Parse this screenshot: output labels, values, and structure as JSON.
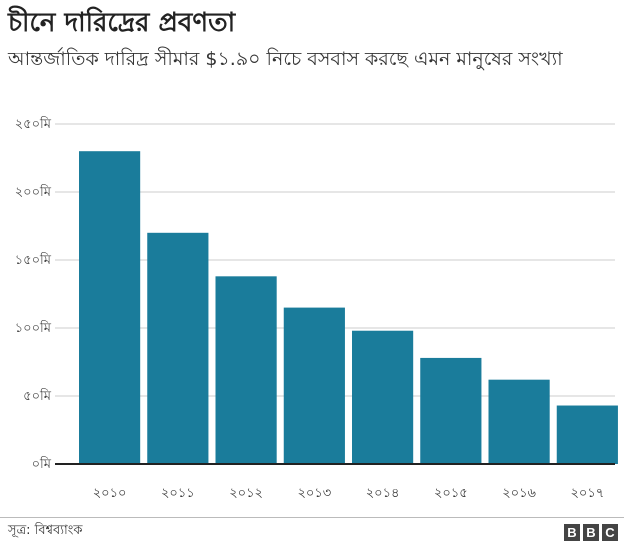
{
  "title": "চীনে দারিদ্রের প্রবণতা",
  "subtitle": "আন্তর্জাতিক দারিদ্র সীমার $১.৯০ নিচে বসবাস করছে এমন মানুষের সংখ্যা",
  "source": "সূত্র: বিশ্বব্যাংক",
  "logo": [
    "B",
    "B",
    "C"
  ],
  "colors": {
    "bar": "#1a7c9b",
    "grid": "#cccccc",
    "axis": "#222222"
  },
  "chart_data": {
    "type": "bar",
    "categories": [
      "২০১০",
      "২০১১",
      "২০১২",
      "২০১৩",
      "২০১৪",
      "২০১৫",
      "২০১৬",
      "২০১৭"
    ],
    "values": [
      230,
      170,
      138,
      115,
      98,
      78,
      62,
      43
    ],
    "ylim": [
      0,
      250
    ],
    "yticks": [
      0,
      50,
      100,
      150,
      200,
      250
    ],
    "ytick_labels": [
      "০মি",
      "৫০মি",
      "১০০মি",
      "১৫০মি",
      "২০০মি",
      "২৫০মি"
    ],
    "grid": true
  }
}
